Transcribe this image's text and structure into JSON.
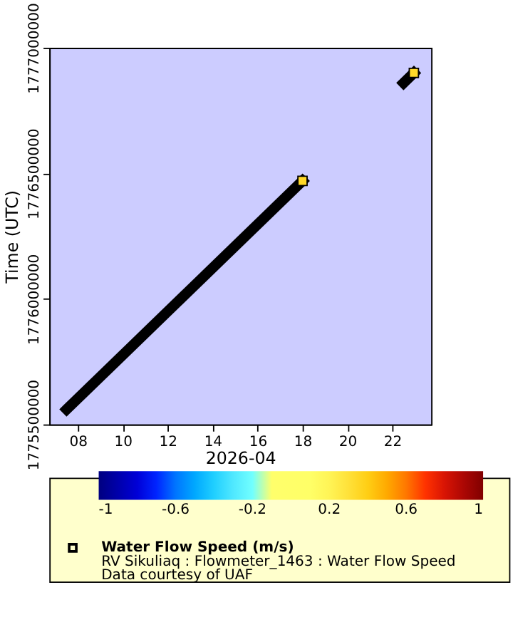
{
  "chart_data": {
    "type": "scatter",
    "xlabel": "2026-04",
    "ylabel": "Time (UTC)",
    "clabel": "Water Flow Speed (m/s)",
    "annotations": [
      "RV Sikuliaq : Flowmeter_1463 : Water Flow Speed",
      "Data courtesy of UAF"
    ],
    "xlim": [
      "2026-04-06T17:30",
      "2026-04-23T17:30"
    ],
    "xticks": [
      {
        "value": "2026-04-08",
        "label": "08"
      },
      {
        "value": "2026-04-10",
        "label": "10"
      },
      {
        "value": "2026-04-12",
        "label": "12"
      },
      {
        "value": "2026-04-14",
        "label": "14"
      },
      {
        "value": "2026-04-16",
        "label": "16"
      },
      {
        "value": "2026-04-18",
        "label": "18"
      },
      {
        "value": "2026-04-20",
        "label": "20"
      },
      {
        "value": "2026-04-22",
        "label": "22"
      }
    ],
    "ylim": [
      1775500000,
      1777000000
    ],
    "yticks": [
      1775500000,
      1776000000,
      1776500000,
      1777000000
    ],
    "clim": [
      -1,
      1
    ],
    "cticks": [
      -1,
      -0.6,
      -0.2,
      0.2,
      0.6,
      1
    ],
    "grid": false,
    "series": [
      {
        "type": "line",
        "color": "#000000",
        "line_style": "solid",
        "marker": "none",
        "x": [
          "2026-04-07T12:00",
          "2026-04-18T00:00"
        ],
        "values": [
          1775560000,
          1776470000
        ]
      },
      {
        "type": "line",
        "color": "#000000",
        "line_style": "solid",
        "marker": "none",
        "x": [
          "2026-04-22T12:00",
          "2026-04-22T23:00"
        ],
        "values": [
          1776860000,
          1776900000
        ]
      },
      {
        "type": "scatter",
        "marker": "square",
        "x": [
          "2026-04-18T00:00",
          "2026-04-22T23:00"
        ],
        "values": [
          1776470000,
          1776900000
        ],
        "cvalues": [
          0.35,
          0.35
        ]
      }
    ]
  }
}
